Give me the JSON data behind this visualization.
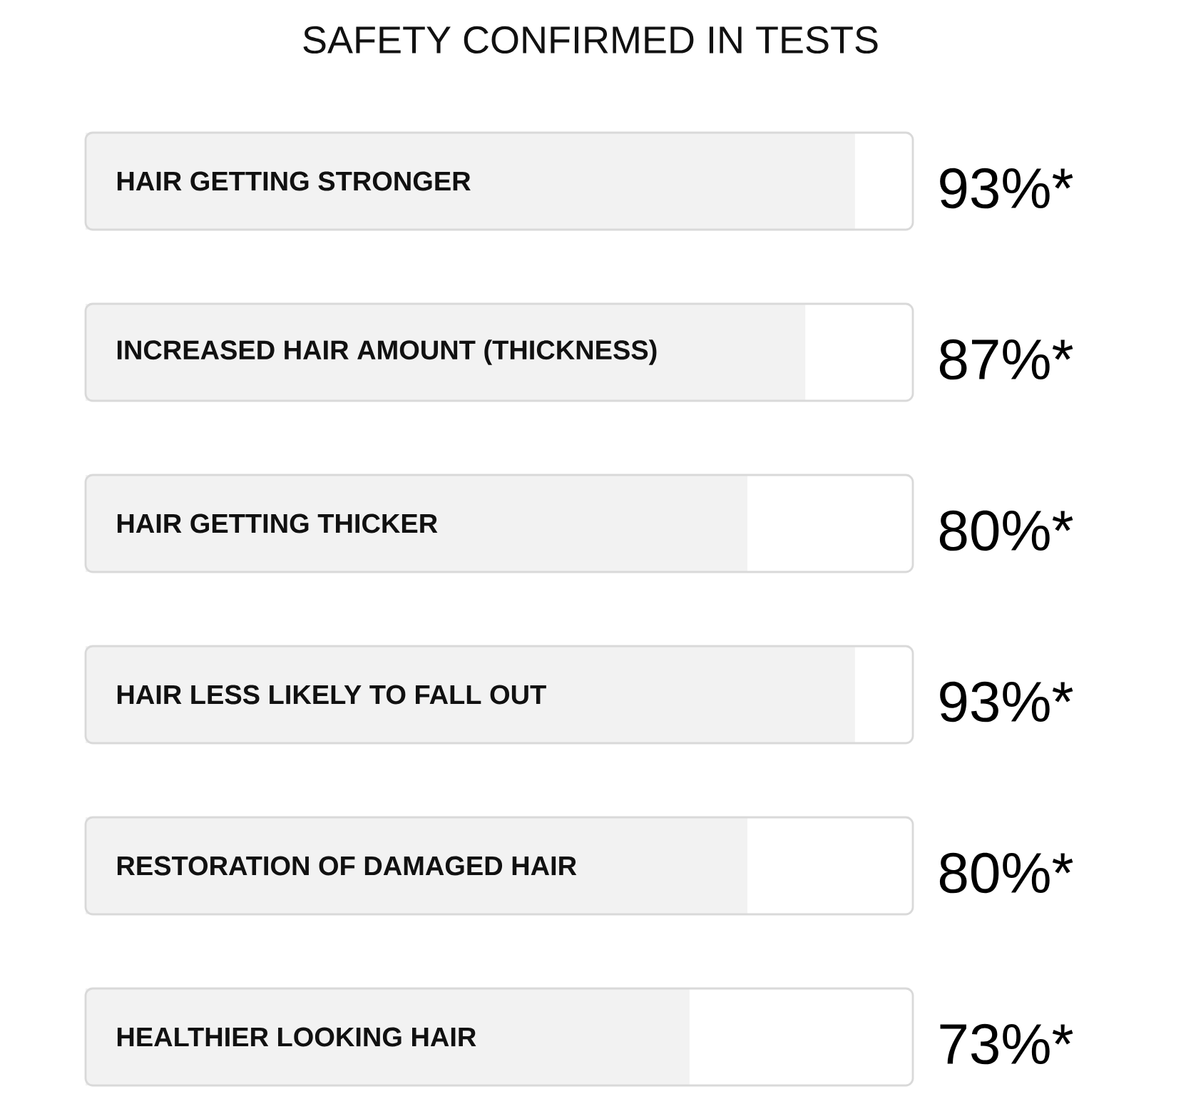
{
  "chart_data": {
    "type": "bar",
    "orientation": "horizontal",
    "title": "SAFETY CONFIRMED IN TESTS",
    "categories": [
      "HAIR GETTING STRONGER",
      "INCREASED HAIR AMOUNT (THICKNESS)",
      "HAIR GETTING THICKER",
      "HAIR LESS LIKELY TO FALL OUT",
      "RESTORATION OF DAMAGED HAIR",
      "HEALTHIER LOOKING HAIR"
    ],
    "values": [
      93,
      87,
      80,
      93,
      80,
      73
    ],
    "value_labels": [
      "93%*",
      "87%*",
      "80%*",
      "93%*",
      "80%*",
      "73%*"
    ],
    "color": "#f2f2f2",
    "xlim": [
      0,
      100
    ],
    "tick_labels": "y"
  }
}
